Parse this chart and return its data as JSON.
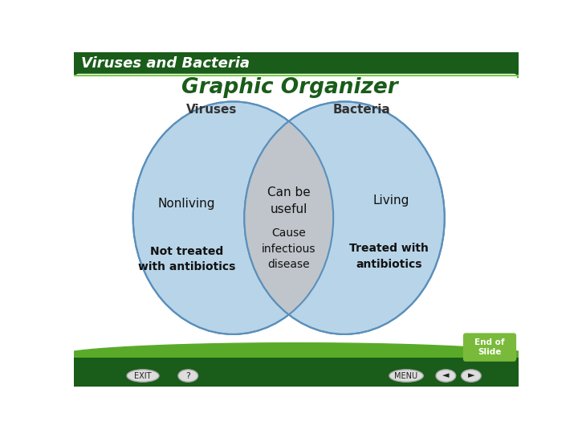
{
  "title": "Graphic Organizer",
  "header": "Viruses and Bacteria",
  "header_bg": "#1a5c1a",
  "header_text_color": "white",
  "bg_color": "white",
  "title_color": "#1a5c1a",
  "circle_fill": "#b8d4e8",
  "circle_edge": "#5a8fbb",
  "overlap_fill": "#c0c4c8",
  "left_label": "Viruses",
  "right_label": "Bacteria",
  "left_texts": [
    "Nonliving",
    "Not treated\nwith antibiotics"
  ],
  "center_texts": [
    "Can be\nuseful",
    "Cause\ninfectious\ndisease"
  ],
  "right_texts": [
    "Living",
    "Treated with\nantibiotics"
  ],
  "label_color": "#333333",
  "text_color": "#111111",
  "end_slide_bg": "#7aba3a",
  "end_slide_text": "End of\nSlide",
  "footer_bg": "#1a5c1a",
  "green_wave_color": "#5aaa2a",
  "top_right_curve_color": "#5aaa2a"
}
